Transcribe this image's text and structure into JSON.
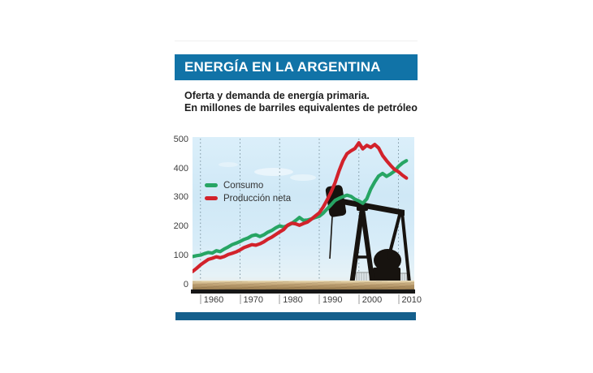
{
  "header": {
    "title": "ENERGÍA EN LA ARGENTINA",
    "subtitle_line1": "Oferta y demanda de energía primaria.",
    "subtitle_line2": "En millones de barriles equivalentes de petróleo"
  },
  "colors": {
    "title_bar_blue": "#1173a7",
    "accent_bar_blue": "#155f8c",
    "consumo_green": "#27a564",
    "produccion_red": "#d2222b"
  },
  "chart_data": {
    "type": "line",
    "title": "ENERGÍA EN LA ARGENTINA",
    "subtitle": "Oferta y demanda de energía primaria. En millones de barriles equivalentes de petróleo",
    "units": "millones de barriles equivalentes de petróleo",
    "background": "photo of black oil pumpjack against light blue sky with sandy ground",
    "grid": "vertical-dotted",
    "legend_position": "inside-top-left",
    "x_range": [
      1958,
      2014
    ],
    "y_range": [
      0,
      500
    ],
    "x_ticks": [
      1960,
      1970,
      1980,
      1990,
      2000,
      2010
    ],
    "y_ticks": [
      500,
      400,
      300,
      200,
      100,
      0
    ],
    "x": [
      1958,
      1959,
      1960,
      1961,
      1962,
      1963,
      1964,
      1965,
      1966,
      1967,
      1968,
      1969,
      1970,
      1971,
      1972,
      1973,
      1974,
      1975,
      1976,
      1977,
      1978,
      1979,
      1980,
      1981,
      1982,
      1983,
      1984,
      1985,
      1986,
      1987,
      1988,
      1989,
      1990,
      1991,
      1992,
      1993,
      1994,
      1995,
      1996,
      1997,
      1998,
      1999,
      2000,
      2001,
      2002,
      2003,
      2004,
      2005,
      2006,
      2007,
      2008,
      2009,
      2010,
      2011,
      2012
    ],
    "series": [
      {
        "id": "consumo",
        "name": "Consumo",
        "color": "#27a564",
        "values": [
          97,
          100,
          102,
          107,
          111,
          109,
          117,
          114,
          123,
          130,
          138,
          143,
          149,
          156,
          161,
          169,
          172,
          166,
          172,
          181,
          187,
          196,
          203,
          199,
          204,
          211,
          221,
          232,
          222,
          223,
          227,
          232,
          236,
          247,
          262,
          276,
          291,
          298,
          304,
          309,
          305,
          295,
          289,
          281,
          296,
          330,
          355,
          375,
          384,
          374,
          382,
          392,
          408,
          420,
          428
        ]
      },
      {
        "id": "produccion_neta",
        "name": "Producción neta",
        "color": "#d2222b",
        "values": [
          45,
          56,
          68,
          78,
          87,
          91,
          96,
          93,
          97,
          104,
          108,
          113,
          120,
          128,
          133,
          138,
          136,
          141,
          148,
          157,
          164,
          173,
          182,
          190,
          205,
          212,
          210,
          205,
          211,
          216,
          226,
          237,
          248,
          268,
          293,
          320,
          352,
          393,
          428,
          452,
          462,
          470,
          490,
          469,
          481,
          474,
          484,
          472,
          446,
          428,
          412,
          398,
          390,
          378,
          368
        ]
      }
    ]
  }
}
